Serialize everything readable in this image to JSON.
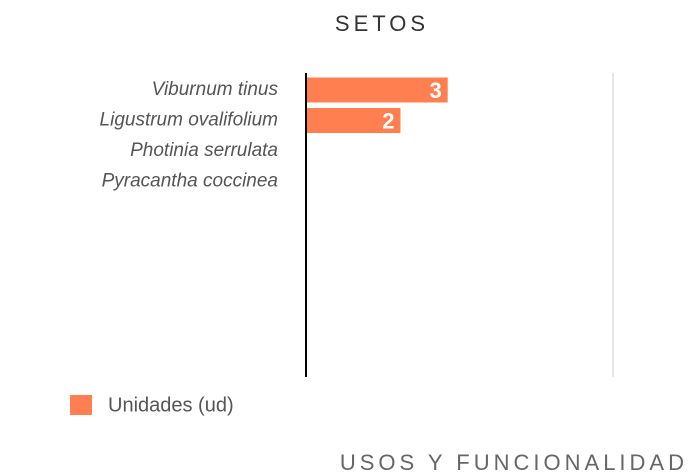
{
  "chart_data": {
    "type": "hbar",
    "title": "SETOS",
    "categories": [
      "Viburnum tinus",
      "Ligustrum ovalifolium",
      "Photinia serrulata",
      "Pyracantha coccinea"
    ],
    "series": [
      {
        "name": "Unidades (ud)",
        "color": "#ff7f50",
        "values": [
          3,
          2,
          0,
          0
        ]
      }
    ],
    "xlim": [
      0,
      6.5
    ],
    "footer": "USOS Y FUNCIONALIDAD"
  }
}
